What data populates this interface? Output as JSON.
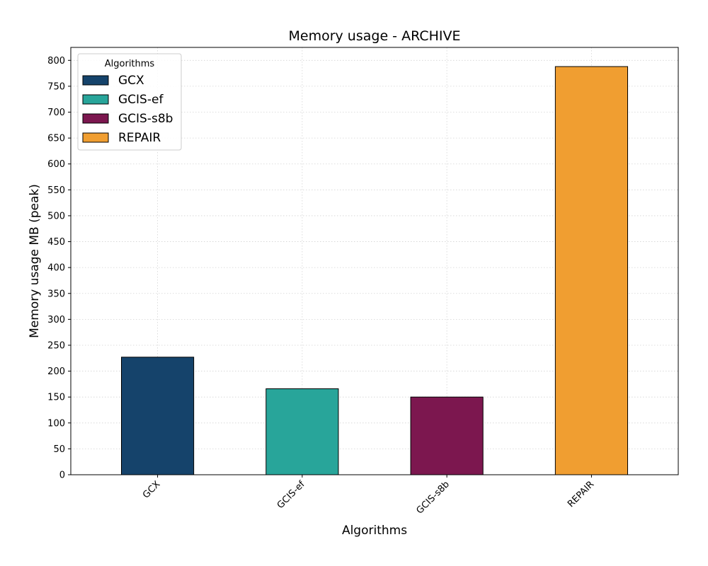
{
  "chart_data": {
    "type": "bar",
    "title": "Memory usage -  ARCHIVE",
    "xlabel": "Algorithms",
    "ylabel": "Memory usage MB (peak)",
    "categories": [
      "GCX",
      "GCIS-ef",
      "GCIS-s8b",
      "REPAIR"
    ],
    "values": [
      227,
      166,
      150,
      788
    ],
    "colors": [
      "#15436b",
      "#28a59a",
      "#7c174f",
      "#f09e31"
    ],
    "ylim": [
      0,
      825
    ],
    "yticks": [
      0,
      50,
      100,
      150,
      200,
      250,
      300,
      350,
      400,
      450,
      500,
      550,
      600,
      650,
      700,
      750,
      800
    ],
    "grid": true,
    "legend": {
      "title": "Algorithms",
      "placement": "top-left",
      "entries": [
        "GCX",
        "GCIS-ef",
        "GCIS-s8b",
        "REPAIR"
      ]
    }
  }
}
